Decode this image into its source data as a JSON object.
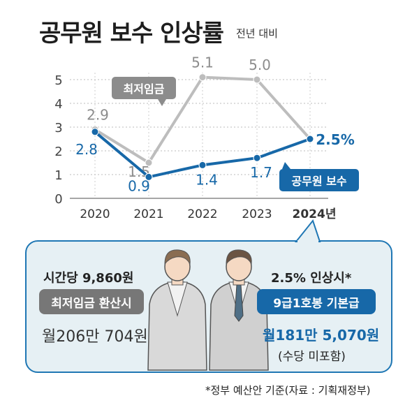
{
  "header": {
    "title": "공무원 보수 인상률",
    "subtitle": "전년 대비"
  },
  "chart_data": {
    "type": "line",
    "categories": [
      "2020",
      "2021",
      "2022",
      "2023",
      "2024년"
    ],
    "ylim": [
      0,
      5
    ],
    "yticks": [
      "0",
      "1",
      "2",
      "3",
      "4",
      "5"
    ],
    "grid": true,
    "series": [
      {
        "name": "최저임금",
        "values": [
          2.9,
          1.5,
          5.1,
          5.0,
          2.5
        ],
        "labels": [
          "2.9",
          "1.5",
          "5.1",
          "5.0",
          ""
        ],
        "color": "#bdbdbd"
      },
      {
        "name": "공무원 보수",
        "values": [
          2.8,
          0.9,
          1.4,
          1.7,
          2.5
        ],
        "labels": [
          "2.8",
          "0.9",
          "1.4",
          "1.7",
          "2.5%"
        ],
        "color": "#1768a8"
      }
    ]
  },
  "panel": {
    "min_wage": {
      "heading": "시간당 9,860원",
      "badge": "최저임금 환산시",
      "value": "월206만 704원",
      "badge_color": "#777777"
    },
    "public_servant": {
      "heading": "2.5% 인상시*",
      "badge": "9급1호봉 기본급",
      "value": "월181만 5,070원",
      "note": "(수당 미포함)",
      "badge_color": "#1768a8"
    }
  },
  "footnote": "*정부 예산안 기준(자료 : 기획재정부)"
}
